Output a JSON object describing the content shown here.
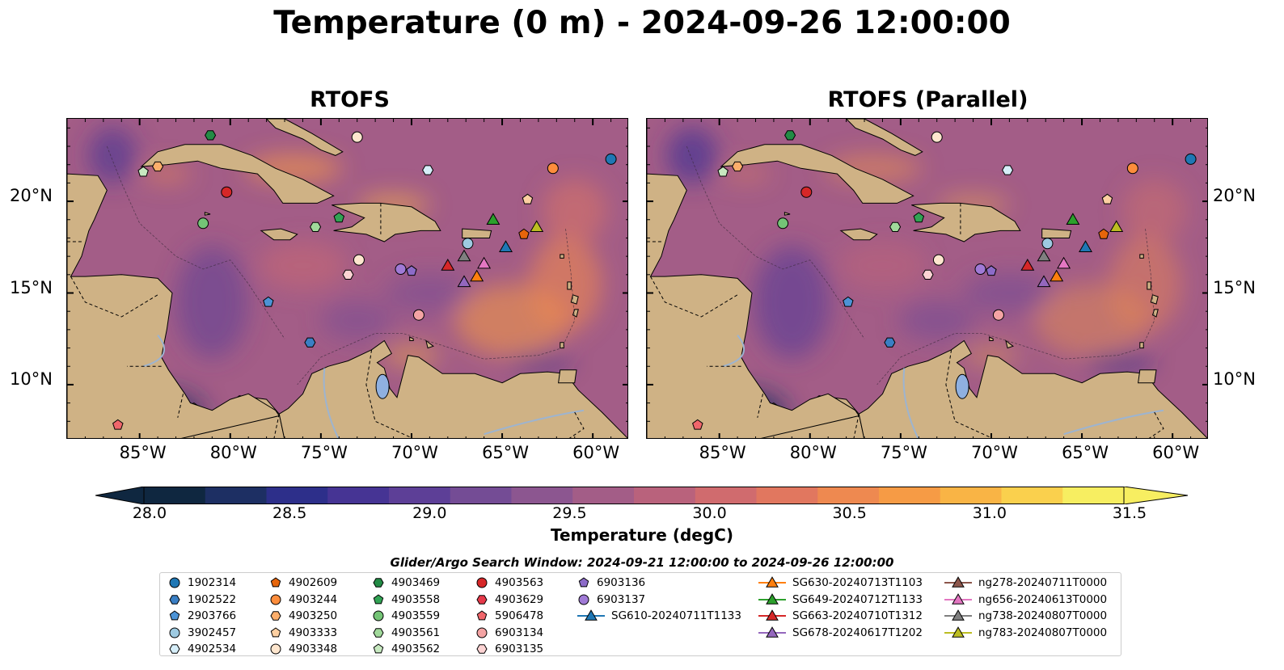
{
  "title": "Temperature (0 m) - 2024-09-26 12:00:00",
  "panels": [
    {
      "title": "RTOFS"
    },
    {
      "title": "RTOFS (Parallel)"
    }
  ],
  "axes": {
    "lon_ticks": [
      "85°W",
      "80°W",
      "75°W",
      "70°W",
      "65°W",
      "60°W"
    ],
    "lat_ticks": [
      "20°N",
      "15°N",
      "10°N"
    ]
  },
  "colorbar": {
    "label": "Temperature (degC)",
    "ticks": [
      "28.0",
      "28.5",
      "29.0",
      "29.5",
      "30.0",
      "30.5",
      "31.0",
      "31.5"
    ],
    "range": [
      28.0,
      31.5
    ],
    "colors": [
      "#0f2740",
      "#1d2f63",
      "#2d2f8a",
      "#463494",
      "#5d3f97",
      "#744c95",
      "#8c5690",
      "#a35d87",
      "#b9627c",
      "#d06b6e",
      "#e1775f",
      "#ee8950",
      "#f69b45",
      "#f9b445",
      "#fad04d",
      "#f7ee61"
    ]
  },
  "legend": {
    "title": "Glider/Argo Search Window: 2024-09-21 12:00:00 to 2024-09-26 12:00:00",
    "items": [
      {
        "label": "1902314",
        "shape": "circle",
        "color": "#1f77b4"
      },
      {
        "label": "1902522",
        "shape": "hexagon",
        "color": "#3a7fc4"
      },
      {
        "label": "2903766",
        "shape": "pentagon",
        "color": "#4c93d6"
      },
      {
        "label": "3902457",
        "shape": "circle",
        "color": "#9ecae1"
      },
      {
        "label": "4902534",
        "shape": "hexagon",
        "color": "#d6eef9"
      },
      {
        "label": "4902609",
        "shape": "pentagon",
        "color": "#e6650b"
      },
      {
        "label": "4903244",
        "shape": "circle",
        "color": "#fd8d3c"
      },
      {
        "label": "4903250",
        "shape": "hexagon",
        "color": "#fdae6b"
      },
      {
        "label": "4903333",
        "shape": "pentagon",
        "color": "#fdd0a2"
      },
      {
        "label": "4903348",
        "shape": "circle",
        "color": "#fee6ce"
      },
      {
        "label": "4903469",
        "shape": "hexagon",
        "color": "#238b45"
      },
      {
        "label": "4903558",
        "shape": "pentagon",
        "color": "#31a354"
      },
      {
        "label": "4903559",
        "shape": "circle",
        "color": "#74c476"
      },
      {
        "label": "4903561",
        "shape": "hexagon",
        "color": "#a1d99b"
      },
      {
        "label": "4903562",
        "shape": "pentagon",
        "color": "#c7e9c0"
      },
      {
        "label": "4903563",
        "shape": "circle",
        "color": "#d62728"
      },
      {
        "label": "4903629",
        "shape": "hexagon",
        "color": "#e6394a"
      },
      {
        "label": "5906478",
        "shape": "pentagon",
        "color": "#f0666b"
      },
      {
        "label": "6903134",
        "shape": "circle",
        "color": "#f4a4a4"
      },
      {
        "label": "6903135",
        "shape": "hexagon",
        "color": "#fcd3d3"
      },
      {
        "label": "6903136",
        "shape": "pentagon",
        "color": "#8c6bc8"
      },
      {
        "label": "6903137",
        "shape": "circle",
        "color": "#a07ad6"
      },
      {
        "label": "SG610-20240711T1133",
        "shape": "triangle",
        "color": "#1f77b4"
      },
      {
        "label": "SG630-20240713T1103",
        "shape": "triangle",
        "color": "#ff7f0e"
      },
      {
        "label": "SG649-20240712T1133",
        "shape": "triangle",
        "color": "#2ca02c"
      },
      {
        "label": "SG663-20240710T1312",
        "shape": "triangle",
        "color": "#d62728"
      },
      {
        "label": "SG678-20240617T1202",
        "shape": "triangle",
        "color": "#9467bd"
      },
      {
        "label": "ng278-20240711T0000",
        "shape": "triangle",
        "color": "#8c564b"
      },
      {
        "label": "ng656-20240613T0000",
        "shape": "triangle",
        "color": "#e377c2"
      },
      {
        "label": "ng738-20240807T0000",
        "shape": "triangle",
        "color": "#7f7f7f"
      },
      {
        "label": "ng783-20240807T0000",
        "shape": "triangle",
        "color": "#bcbd22"
      }
    ]
  },
  "map_extent": {
    "lon": [
      -89,
      -58
    ],
    "lat": [
      7,
      24.5
    ]
  },
  "markers": [
    {
      "id": "1902314",
      "lon": -59.0,
      "lat": 22.3
    },
    {
      "id": "4903244",
      "lon": -62.2,
      "lat": 21.8
    },
    {
      "id": "4903333",
      "lon": -63.6,
      "lat": 20.1
    },
    {
      "id": "4902534",
      "lon": -69.1,
      "lat": 21.7
    },
    {
      "id": "4903348",
      "lon": -73.0,
      "lat": 23.5
    },
    {
      "id": "4903469",
      "lon": -81.1,
      "lat": 23.6
    },
    {
      "id": "4903250",
      "lon": -84.0,
      "lat": 21.9
    },
    {
      "id": "4903562",
      "lon": -84.8,
      "lat": 21.6
    },
    {
      "id": "4903563",
      "lon": -80.2,
      "lat": 20.5
    },
    {
      "id": "4903559",
      "lon": -81.5,
      "lat": 18.8
    },
    {
      "id": "4903558",
      "lon": -74.0,
      "lat": 19.1
    },
    {
      "id": "4903561",
      "lon": -75.3,
      "lat": 18.6
    },
    {
      "id": "3902457",
      "lon": -66.9,
      "lat": 17.7
    },
    {
      "id": "4902609",
      "lon": -63.8,
      "lat": 18.2
    },
    {
      "id": "4903348b",
      "lon": -72.9,
      "lat": 16.8
    },
    {
      "id": "6903135",
      "lon": -73.5,
      "lat": 16.0
    },
    {
      "id": "6903137",
      "lon": -70.6,
      "lat": 16.3
    },
    {
      "id": "6903136",
      "lon": -70.0,
      "lat": 16.2
    },
    {
      "id": "2903766",
      "lon": -77.9,
      "lat": 14.5
    },
    {
      "id": "6903134",
      "lon": -69.6,
      "lat": 13.8
    },
    {
      "id": "1902522",
      "lon": -75.6,
      "lat": 12.3
    },
    {
      "id": "5906478",
      "lon": -86.2,
      "lat": 7.8
    },
    {
      "id": "SG649-20240712T1133",
      "lon": -65.5,
      "lat": 19.0
    },
    {
      "id": "ng783-20240807T0000",
      "lon": -63.1,
      "lat": 18.6
    },
    {
      "id": "SG610-20240711T1133",
      "lon": -64.8,
      "lat": 17.5
    },
    {
      "id": "SG663-20240710T1312",
      "lon": -68.0,
      "lat": 16.5
    },
    {
      "id": "ng738-20240807T0000",
      "lon": -67.1,
      "lat": 17.0
    },
    {
      "id": "ng656-20240613T0000",
      "lon": -66.0,
      "lat": 16.6
    },
    {
      "id": "SG630-20240713T1103",
      "lon": -66.4,
      "lat": 15.9
    },
    {
      "id": "SG678-20240617T1202",
      "lon": -67.1,
      "lat": 15.6
    }
  ]
}
